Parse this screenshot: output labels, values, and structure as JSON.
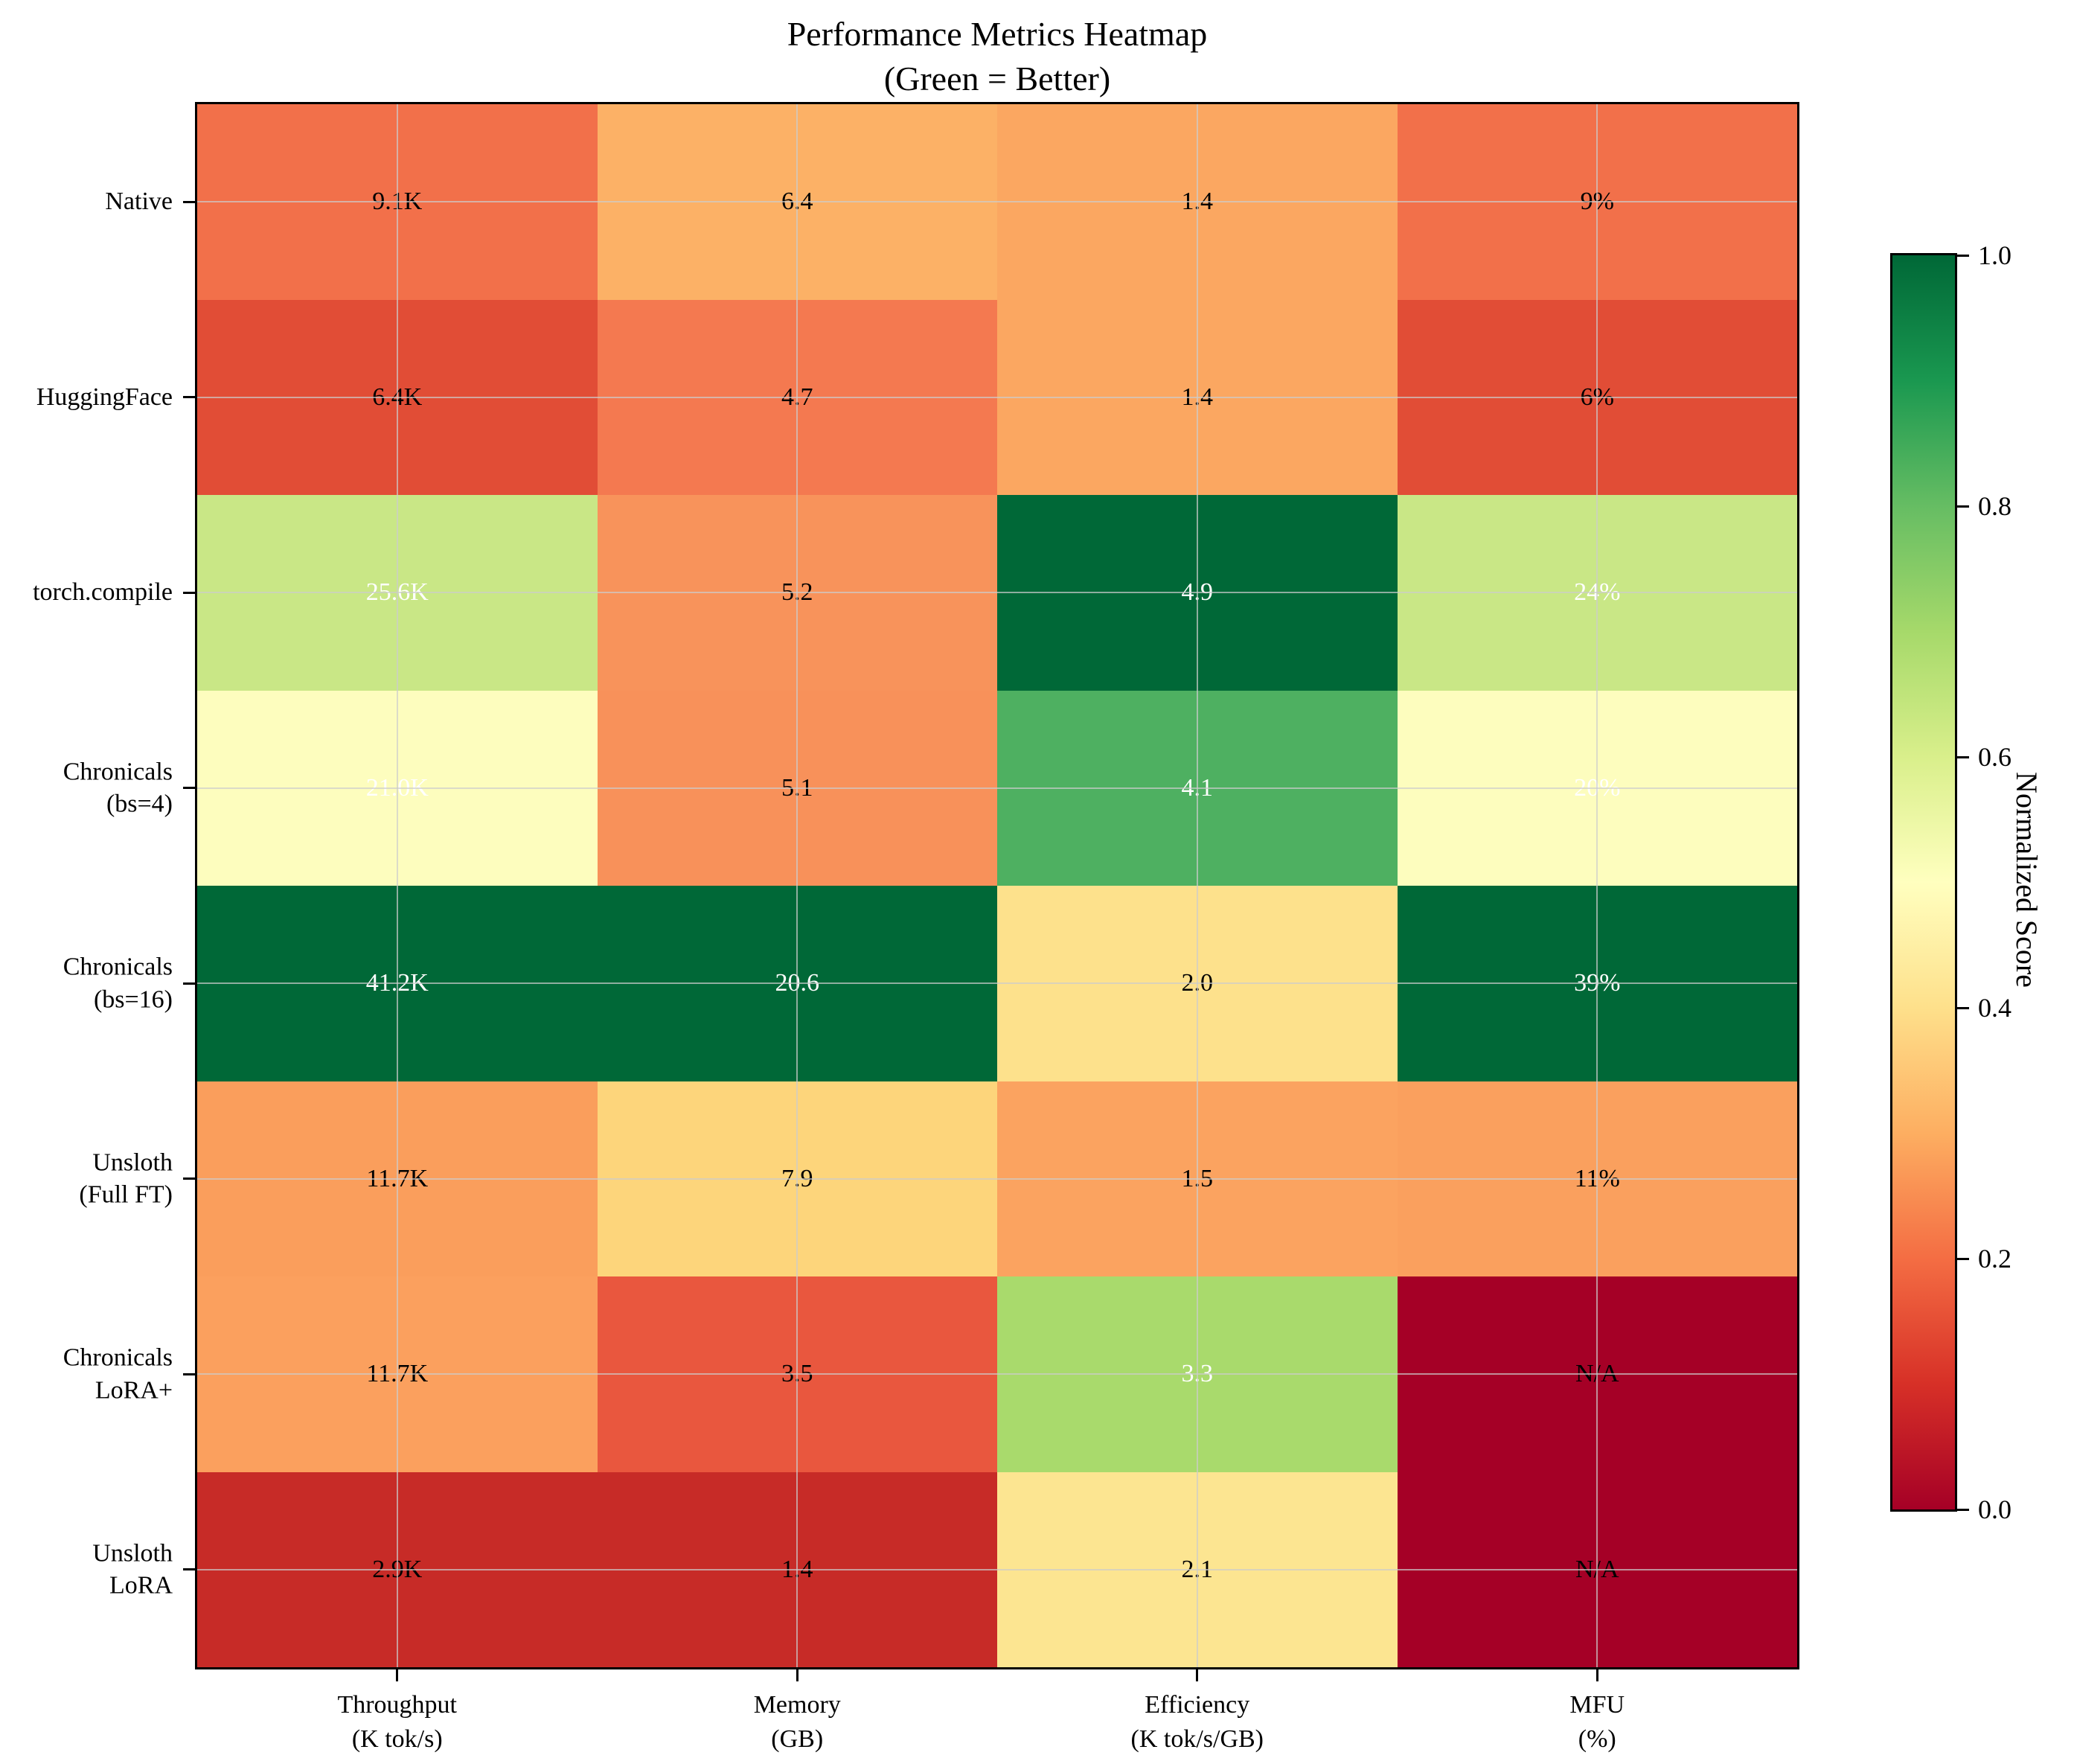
{
  "title": {
    "line1": "Performance Metrics Heatmap",
    "line2": "(Green = Better)"
  },
  "chart_data": {
    "type": "heatmap",
    "title": "Performance Metrics Heatmap (Green = Better)",
    "rows": [
      [
        "Native"
      ],
      [
        "HuggingFace"
      ],
      [
        "torch.compile"
      ],
      [
        "Chronicals",
        "(bs=4)"
      ],
      [
        "Chronicals",
        "(bs=16)"
      ],
      [
        "Unsloth",
        "(Full FT)"
      ],
      [
        "Chronicals",
        "LoRA+"
      ],
      [
        "Unsloth",
        "LoRA"
      ]
    ],
    "columns": [
      [
        "Throughput",
        "(K tok/s)"
      ],
      [
        "Memory",
        "(GB)"
      ],
      [
        "Efficiency",
        "(K tok/s/GB)"
      ],
      [
        "MFU",
        "(%)"
      ]
    ],
    "series": [
      {
        "name": "Throughput (K tok/s)",
        "values": [
          9.1,
          6.4,
          25.6,
          21.0,
          41.2,
          11.7,
          11.7,
          2.9
        ]
      },
      {
        "name": "Memory (GB)",
        "values": [
          6.4,
          4.7,
          5.2,
          5.1,
          20.6,
          7.9,
          3.5,
          1.4
        ]
      },
      {
        "name": "Efficiency (K tok/s/GB)",
        "values": [
          1.4,
          1.4,
          4.9,
          4.1,
          2.0,
          1.5,
          3.3,
          2.1
        ]
      },
      {
        "name": "MFU (%)",
        "values": [
          9,
          6,
          24,
          20,
          39,
          11,
          null,
          null
        ]
      }
    ],
    "cells": [
      [
        {
          "label": "9.1K",
          "bg": "#f2704a",
          "fg": "#000000"
        },
        {
          "label": "6.4",
          "bg": "#fcb166",
          "fg": "#000000"
        },
        {
          "label": "1.4",
          "bg": "#fba761",
          "fg": "#000000"
        },
        {
          "label": "9%",
          "bg": "#f2704a",
          "fg": "#000000"
        }
      ],
      [
        {
          "label": "6.4K",
          "bg": "#e14d36",
          "fg": "#000000"
        },
        {
          "label": "4.7",
          "bg": "#f47950",
          "fg": "#000000"
        },
        {
          "label": "1.4",
          "bg": "#fba761",
          "fg": "#000000"
        },
        {
          "label": "6%",
          "bg": "#e14d36",
          "fg": "#000000"
        }
      ],
      [
        {
          "label": "25.6K",
          "bg": "#c9e786",
          "fg": "#ffffff"
        },
        {
          "label": "5.2",
          "bg": "#f8935b",
          "fg": "#000000"
        },
        {
          "label": "4.9",
          "bg": "#006837",
          "fg": "#ffffff"
        },
        {
          "label": "24%",
          "bg": "#c9e786",
          "fg": "#ffffff"
        }
      ],
      [
        {
          "label": "21.0K",
          "bg": "#fdfdbe",
          "fg": "#ffffff"
        },
        {
          "label": "5.1",
          "bg": "#f8915a",
          "fg": "#000000"
        },
        {
          "label": "4.1",
          "bg": "#4eb061",
          "fg": "#ffffff"
        },
        {
          "label": "20%",
          "bg": "#fdfdbe",
          "fg": "#ffffff"
        }
      ],
      [
        {
          "label": "41.2K",
          "bg": "#006837",
          "fg": "#ffffff"
        },
        {
          "label": "20.6",
          "bg": "#006837",
          "fg": "#ffffff"
        },
        {
          "label": "2.0",
          "bg": "#fde18c",
          "fg": "#000000"
        },
        {
          "label": "39%",
          "bg": "#006837",
          "fg": "#ffffff"
        }
      ],
      [
        {
          "label": "11.7K",
          "bg": "#fa9e5c",
          "fg": "#000000"
        },
        {
          "label": "7.9",
          "bg": "#fdd57b",
          "fg": "#000000"
        },
        {
          "label": "1.5",
          "bg": "#fba360",
          "fg": "#000000"
        },
        {
          "label": "11%",
          "bg": "#faa05e",
          "fg": "#000000"
        }
      ],
      [
        {
          "label": "11.7K",
          "bg": "#fba05e",
          "fg": "#000000"
        },
        {
          "label": "3.5",
          "bg": "#e9573e",
          "fg": "#000000"
        },
        {
          "label": "3.3",
          "bg": "#a9da6c",
          "fg": "#ffffff"
        },
        {
          "label": "N/A",
          "bg": "#a50026",
          "fg": "#000000"
        }
      ],
      [
        {
          "label": "2.9K",
          "bg": "#c72b27",
          "fg": "#000000"
        },
        {
          "label": "1.4",
          "bg": "#c72b27",
          "fg": "#000000"
        },
        {
          "label": "2.1",
          "bg": "#fce591",
          "fg": "#000000"
        },
        {
          "label": "N/A",
          "bg": "#a50026",
          "fg": "#000000"
        }
      ]
    ],
    "colorbar": {
      "label": "Normalized Score",
      "ticks": [
        "1.0",
        "0.8",
        "0.6",
        "0.4",
        "0.2",
        "0.0"
      ],
      "range": [
        0.0,
        1.0
      ],
      "gradient_stops_bottom_to_top": [
        "#a50026",
        "#d73027",
        "#f46d43",
        "#fdae61",
        "#fee08b",
        "#ffffbf",
        "#d9ef8b",
        "#a6d96a",
        "#66bd63",
        "#1a9850",
        "#006837"
      ]
    },
    "grid": true,
    "legend_position": "right-colorbar"
  }
}
